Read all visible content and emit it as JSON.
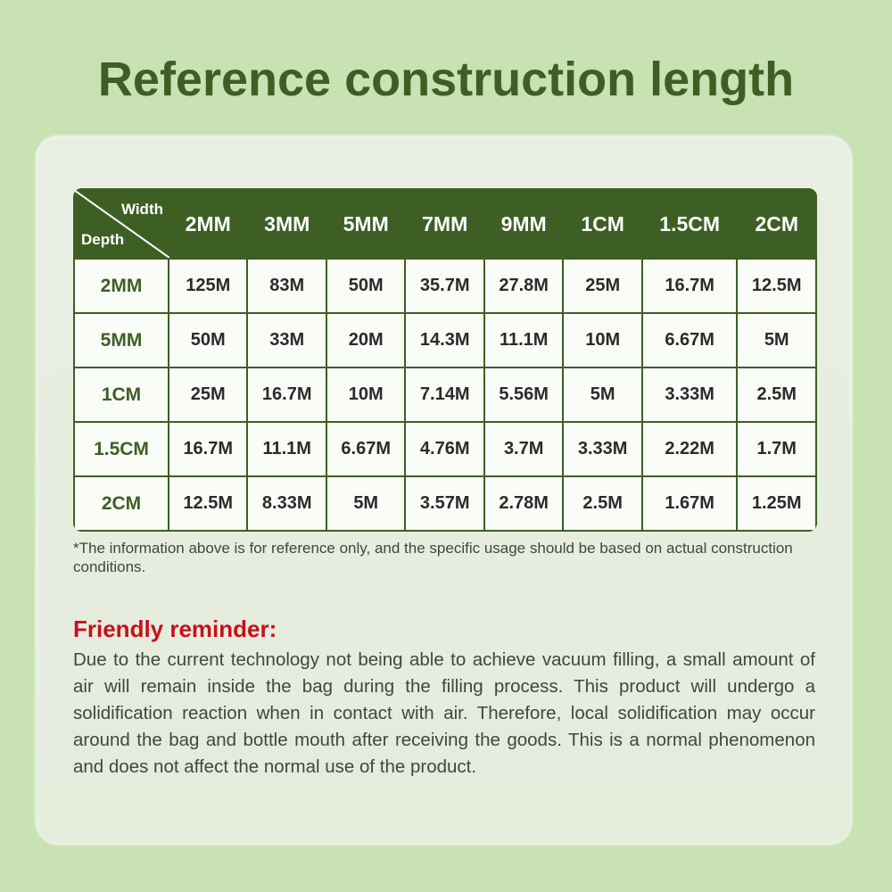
{
  "title": "Reference construction length",
  "table": {
    "corner_width": "Width",
    "corner_depth": "Depth",
    "columns": [
      "2MM",
      "3MM",
      "5MM",
      "7MM",
      "9MM",
      "1CM",
      "1.5CM",
      "2CM"
    ],
    "rows": [
      {
        "depth": "2MM",
        "values": [
          "125M",
          "83M",
          "50M",
          "35.7M",
          "27.8M",
          "25M",
          "16.7M",
          "12.5M"
        ]
      },
      {
        "depth": "5MM",
        "values": [
          "50M",
          "33M",
          "20M",
          "14.3M",
          "11.1M",
          "10M",
          "6.67M",
          "5M"
        ]
      },
      {
        "depth": "1CM",
        "values": [
          "25M",
          "16.7M",
          "10M",
          "7.14M",
          "5.56M",
          "5M",
          "3.33M",
          "2.5M"
        ]
      },
      {
        "depth": "1.5CM",
        "values": [
          "16.7M",
          "11.1M",
          "6.67M",
          "4.76M",
          "3.7M",
          "3.33M",
          "2.22M",
          "1.7M"
        ]
      },
      {
        "depth": "2CM",
        "values": [
          "12.5M",
          "8.33M",
          "5M",
          "3.57M",
          "2.78M",
          "2.5M",
          "1.67M",
          "1.25M"
        ]
      }
    ]
  },
  "note": "*The information above is for reference only, and the specific usage should be based on actual construction conditions.",
  "reminder": {
    "title": "Friendly reminder:",
    "text": "Due to the current technology not being able to achieve vacuum filling, a small amount of air will remain inside the bag during the filling process. This product will undergo a solidification reaction when in contact with air. Therefore, local solidification may occur around the bag and bottle mouth after receiving the goods. This is a normal phenomenon and does not affect the normal use of the product."
  },
  "colors": {
    "brand_green": "#3d5f24",
    "reminder_red": "#c8101a",
    "background": "#c8e2b3"
  }
}
